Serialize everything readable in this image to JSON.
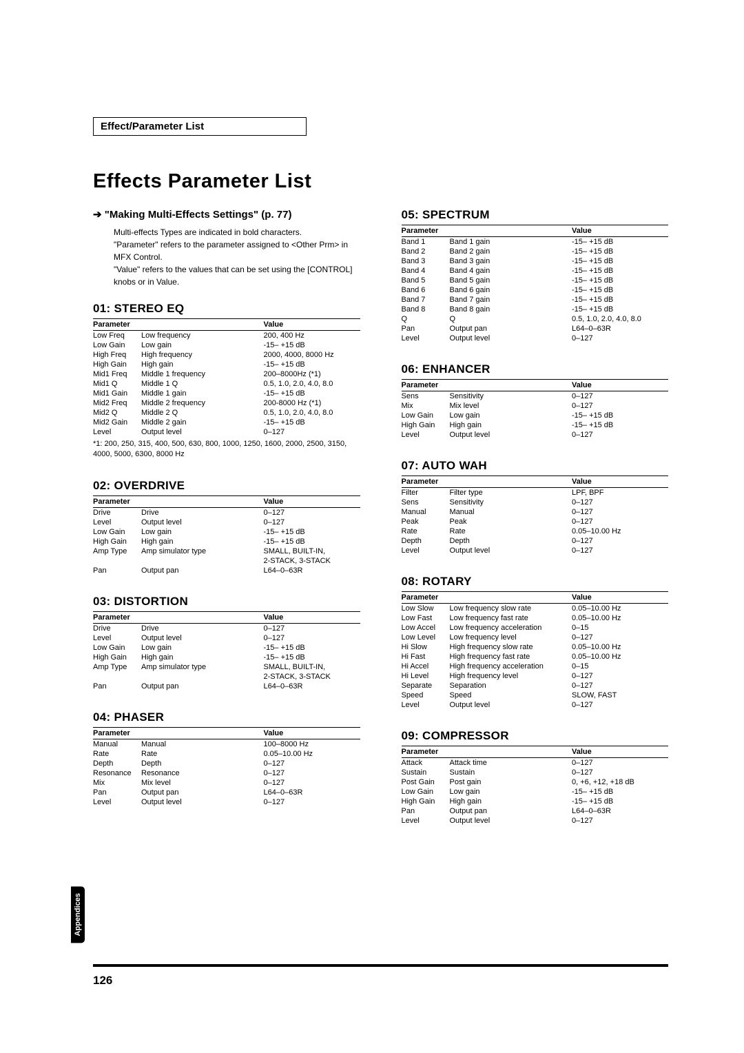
{
  "headerBox": "Effect/Parameter List",
  "mainTitle": "Effects Parameter List",
  "linkLine": "➔ \"Making Multi-Effects Settings\" (p. 77)",
  "intro": [
    "Multi-effects Types are indicated in bold characters.",
    "\"Parameter\" refers to the parameter assigned to <Other Prm> in MFX Control.",
    "\"Value\" refers to the values that can be set using the [CONTROL] knobs or in Value."
  ],
  "columns": {
    "left": [
      {
        "title": "01: STEREO EQ",
        "headers": [
          "Parameter",
          "",
          "Value"
        ],
        "rows": [
          [
            "Low Freq",
            "Low frequency",
            "200, 400 Hz"
          ],
          [
            "Low Gain",
            "Low gain",
            "-15– +15 dB"
          ],
          [
            "High Freq",
            "High frequency",
            "2000, 4000, 8000 Hz"
          ],
          [
            "High Gain",
            "High gain",
            "-15– +15 dB"
          ],
          [
            "Mid1 Freq",
            "Middle 1 frequency",
            "200–8000Hz (*1)"
          ],
          [
            "Mid1 Q",
            "Middle 1 Q",
            "0.5, 1.0, 2.0, 4.0, 8.0"
          ],
          [
            "Mid1 Gain",
            "Middle 1 gain",
            "-15– +15 dB"
          ],
          [
            "Mid2 Freq",
            "Middle 2 frequency",
            "200-8000 Hz (*1)"
          ],
          [
            "Mid2 Q",
            "Middle 2 Q",
            "0.5, 1.0, 2.0, 4.0, 8.0"
          ],
          [
            "Mid2 Gain",
            "Middle 2 gain",
            "-15– +15 dB"
          ],
          [
            "Level",
            "Output level",
            "0–127"
          ]
        ],
        "note": "*1:  200, 250, 315, 400, 500, 630, 800, 1000, 1250, 1600, 2000, 2500, 3150, 4000, 5000, 6300, 8000 Hz"
      },
      {
        "title": "02: OVERDRIVE",
        "headers": [
          "Parameter",
          "",
          "Value"
        ],
        "rows": [
          [
            "Drive",
            "Drive",
            "0–127"
          ],
          [
            "Level",
            "Output level",
            "0–127"
          ],
          [
            "Low Gain",
            "Low gain",
            "-15– +15 dB"
          ],
          [
            "High Gain",
            "High gain",
            "-15– +15 dB"
          ],
          [
            "Amp Type",
            "Amp simulator type",
            "SMALL, BUILT-IN,"
          ],
          [
            "",
            "",
            "2-STACK, 3-STACK"
          ],
          [
            "Pan",
            "Output pan",
            "L64–0–63R"
          ]
        ]
      },
      {
        "title": "03: DISTORTION",
        "headers": [
          "Parameter",
          "",
          "Value"
        ],
        "rows": [
          [
            "Drive",
            "Drive",
            "0–127"
          ],
          [
            "Level",
            "Output level",
            "0–127"
          ],
          [
            "Low Gain",
            "Low gain",
            "-15– +15 dB"
          ],
          [
            "High Gain",
            "High gain",
            "-15– +15 dB"
          ],
          [
            "Amp Type",
            "Amp simulator type",
            "SMALL, BUILT-IN,"
          ],
          [
            "",
            "",
            "2-STACK, 3-STACK"
          ],
          [
            "Pan",
            "Output pan",
            "L64–0–63R"
          ]
        ]
      },
      {
        "title": "04: PHASER",
        "headers": [
          "Parameter",
          "",
          "Value"
        ],
        "rows": [
          [
            "Manual",
            "Manual",
            "100–8000 Hz"
          ],
          [
            "Rate",
            "Rate",
            "0.05–10.00 Hz"
          ],
          [
            "Depth",
            "Depth",
            "0–127"
          ],
          [
            "Resonance",
            "Resonance",
            "0–127"
          ],
          [
            "Mix",
            "Mix level",
            "0–127"
          ],
          [
            "Pan",
            "Output pan",
            "L64–0–63R"
          ],
          [
            "Level",
            "Output level",
            "0–127"
          ]
        ]
      }
    ],
    "right": [
      {
        "title": "05: SPECTRUM",
        "headers": [
          "Parameter",
          "",
          "Value"
        ],
        "rows": [
          [
            "Band 1",
            "Band 1 gain",
            "-15– +15 dB"
          ],
          [
            "Band 2",
            "Band 2 gain",
            "-15– +15 dB"
          ],
          [
            "Band 3",
            "Band 3 gain",
            "-15– +15 dB"
          ],
          [
            "Band 4",
            "Band 4 gain",
            "-15– +15 dB"
          ],
          [
            "Band 5",
            "Band 5 gain",
            "-15– +15 dB"
          ],
          [
            "Band 6",
            "Band 6 gain",
            "-15– +15 dB"
          ],
          [
            "Band 7",
            "Band 7 gain",
            "-15– +15 dB"
          ],
          [
            "Band 8",
            "Band 8 gain",
            "-15– +15 dB"
          ],
          [
            "Q",
            "Q",
            "0.5, 1.0, 2.0, 4.0, 8.0"
          ],
          [
            "Pan",
            "Output pan",
            "L64–0–63R"
          ],
          [
            "Level",
            "Output level",
            "0–127"
          ]
        ]
      },
      {
        "title": "06: ENHANCER",
        "headers": [
          "Parameter",
          "",
          "Value"
        ],
        "rows": [
          [
            "Sens",
            "Sensitivity",
            "0–127"
          ],
          [
            "Mix",
            "Mix level",
            "0–127"
          ],
          [
            "Low Gain",
            "Low gain",
            "-15– +15 dB"
          ],
          [
            "High Gain",
            "High gain",
            "-15– +15 dB"
          ],
          [
            "Level",
            "Output level",
            "0–127"
          ]
        ]
      },
      {
        "title": "07: AUTO WAH",
        "headers": [
          "Parameter",
          "",
          "Value"
        ],
        "rows": [
          [
            "Filter",
            "Filter type",
            "LPF, BPF"
          ],
          [
            "Sens",
            "Sensitivity",
            "0–127"
          ],
          [
            "Manual",
            "Manual",
            "0–127"
          ],
          [
            "Peak",
            "Peak",
            "0–127"
          ],
          [
            "Rate",
            "Rate",
            "0.05–10.00 Hz"
          ],
          [
            "Depth",
            "Depth",
            "0–127"
          ],
          [
            "Level",
            "Output level",
            "0–127"
          ]
        ]
      },
      {
        "title": "08: ROTARY",
        "headers": [
          "Parameter",
          "",
          "Value"
        ],
        "rows": [
          [
            "Low Slow",
            "Low frequency slow rate",
            "0.05–10.00 Hz"
          ],
          [
            "Low Fast",
            "Low frequency fast rate",
            "0.05–10.00 Hz"
          ],
          [
            "Low Accel",
            "Low frequency acceleration",
            "0–15"
          ],
          [
            "Low Level",
            "Low frequency level",
            "0–127"
          ],
          [
            "Hi Slow",
            "High frequency slow rate",
            "0.05–10.00 Hz"
          ],
          [
            "Hi Fast",
            "High frequency fast rate",
            "0.05–10.00 Hz"
          ],
          [
            "Hi Accel",
            "High frequency acceleration",
            "0–15"
          ],
          [
            "Hi Level",
            "High frequency level",
            "0–127"
          ],
          [
            "Separate",
            "Separation",
            "0–127"
          ],
          [
            "Speed",
            "Speed",
            "SLOW, FAST"
          ],
          [
            "Level",
            "Output level",
            "0–127"
          ]
        ]
      },
      {
        "title": "09: COMPRESSOR",
        "headers": [
          "Parameter",
          "",
          "Value"
        ],
        "rows": [
          [
            "Attack",
            "Attack time",
            "0–127"
          ],
          [
            "Sustain",
            "Sustain",
            "0–127"
          ],
          [
            "Post Gain",
            "Post gain",
            "0, +6, +12, +18 dB"
          ],
          [
            "Low Gain",
            "Low gain",
            "-15– +15 dB"
          ],
          [
            "High Gain",
            "High gain",
            "-15– +15 dB"
          ],
          [
            "Pan",
            "Output pan",
            "L64–0–63R"
          ],
          [
            "Level",
            "Output level",
            "0–127"
          ]
        ]
      }
    ]
  },
  "appendixTab": "Appendices",
  "pageNumber": "126"
}
